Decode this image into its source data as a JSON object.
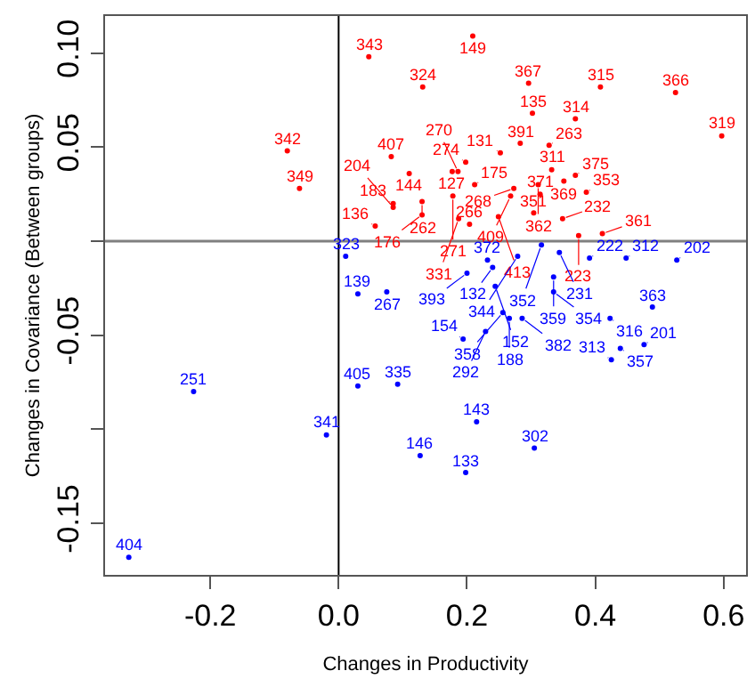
{
  "chart_data": {
    "type": "scatter",
    "xlabel": "Changes in Productivity",
    "ylabel": "Changes in Covariance (Between groups)",
    "marker": "circle",
    "xlim": [
      -0.364,
      0.635
    ],
    "ylim": [
      -0.1774,
      0.1197
    ],
    "xticks": [
      -0.2,
      {
        "value": 0,
        "label": "0.0"
      },
      0.2,
      0.4,
      0.6
    ],
    "yticks": [
      -0.15,
      {
        "value": -0.1,
        "label": null
      },
      -0.05,
      {
        "value": 0,
        "label": null
      },
      0.05,
      {
        "value": 0.1,
        "label": "0.10"
      }
    ],
    "ref_lines": [
      {
        "axis": "x",
        "value": 0,
        "color": "#000000"
      },
      {
        "axis": "y",
        "value": 0,
        "color": "#808080"
      }
    ],
    "series": [
      {
        "color": "#ff0000",
        "x": [
          0.209,
          0.047,
          0.131,
          0.296,
          0.408,
          0.525,
          0.302,
          0.369,
          0.597,
          -0.08,
          0.283,
          0.328,
          0.252,
          0.082,
          0.198,
          0.177,
          0.186,
          0.11,
          0.332,
          0.369,
          0.351,
          0.212,
          -0.061,
          0.273,
          0.311,
          0.268,
          0.314,
          0.386,
          0.13,
          0.178,
          0.085,
          0.085,
          0.13,
          0.187,
          0.204,
          0.249,
          0.304,
          0.349,
          0.057,
          0.374,
          0.411
        ],
        "values": [
          0.109,
          0.098,
          0.082,
          0.084,
          0.082,
          0.079,
          0.068,
          0.065,
          0.056,
          0.048,
          0.052,
          0.051,
          0.047,
          0.045,
          0.042,
          0.037,
          0.037,
          0.036,
          0.038,
          0.035,
          0.032,
          0.03,
          0.028,
          0.028,
          0.03,
          0.024,
          0.025,
          0.026,
          0.021,
          0.024,
          0.02,
          0.018,
          0.014,
          0.012,
          0.009,
          0.013,
          0.015,
          0.012,
          0.008,
          0.003,
          0.004
        ]
      },
      {
        "color": "#0000ff",
        "x": [
          0.316,
          0.344,
          0.279,
          0.391,
          0.448,
          0.527,
          0.011,
          0.232,
          0.24,
          0.2,
          0.335,
          0.244,
          0.335,
          0.03,
          0.075,
          0.489,
          0.423,
          0.256,
          0.266,
          0.286,
          0.229,
          0.194,
          0.439,
          0.476,
          0.425,
          0.03,
          0.092,
          -0.226,
          0.215,
          -0.019,
          0.305,
          0.127,
          0.198,
          -0.327
        ],
        "values": [
          -0.002,
          -0.006,
          -0.008,
          -0.009,
          -0.009,
          -0.01,
          -0.008,
          -0.01,
          -0.014,
          -0.017,
          -0.019,
          -0.024,
          -0.027,
          -0.028,
          -0.027,
          -0.035,
          -0.041,
          -0.038,
          -0.041,
          -0.041,
          -0.048,
          -0.052,
          -0.057,
          -0.055,
          -0.063,
          -0.077,
          -0.076,
          -0.08,
          -0.096,
          -0.103,
          -0.11,
          -0.114,
          -0.123,
          -0.168
        ]
      }
    ],
    "annotations": [
      {
        "text": "149",
        "x": 0.209,
        "y": 0.109
      },
      {
        "text": "343",
        "x": 0.047,
        "y": 0.098
      },
      {
        "text": "324",
        "x": 0.131,
        "y": 0.082
      },
      {
        "text": "367",
        "x": 0.296,
        "y": 0.084
      },
      {
        "text": "315",
        "x": 0.408,
        "y": 0.082
      },
      {
        "text": "366",
        "x": 0.525,
        "y": 0.079
      },
      {
        "text": "135",
        "x": 0.302,
        "y": 0.068
      },
      {
        "text": "314",
        "x": 0.369,
        "y": 0.065
      },
      {
        "text": "319",
        "x": 0.597,
        "y": 0.056
      },
      {
        "text": "342",
        "x": -0.08,
        "y": 0.048
      },
      {
        "text": "391",
        "x": 0.283,
        "y": 0.052
      },
      {
        "text": "263",
        "x": 0.328,
        "y": 0.051
      },
      {
        "text": "131",
        "x": 0.252,
        "y": 0.047
      },
      {
        "text": "407",
        "x": 0.082,
        "y": 0.045
      },
      {
        "text": "274",
        "x": 0.198,
        "y": 0.042
      },
      {
        "text": "127",
        "x": 0.177,
        "y": 0.037
      },
      {
        "text": "270",
        "x": 0.186,
        "y": 0.037
      },
      {
        "text": "144",
        "x": 0.11,
        "y": 0.036
      },
      {
        "text": "311",
        "x": 0.332,
        "y": 0.038
      },
      {
        "text": "375",
        "x": 0.369,
        "y": 0.035
      },
      {
        "text": "369",
        "x": 0.351,
        "y": 0.032
      },
      {
        "text": "175",
        "x": 0.212,
        "y": 0.03
      },
      {
        "text": "349",
        "x": -0.061,
        "y": 0.028
      },
      {
        "text": "268",
        "x": 0.273,
        "y": 0.028
      },
      {
        "text": "362",
        "x": 0.311,
        "y": 0.03
      },
      {
        "text": "409",
        "x": 0.268,
        "y": 0.024
      },
      {
        "text": "371",
        "x": 0.314,
        "y": 0.025
      },
      {
        "text": "353",
        "x": 0.386,
        "y": 0.026
      },
      {
        "text": "262",
        "x": 0.13,
        "y": 0.021
      },
      {
        "text": "271",
        "x": 0.178,
        "y": 0.024
      },
      {
        "text": "183",
        "x": 0.085,
        "y": 0.02
      },
      {
        "text": "204",
        "x": 0.085,
        "y": 0.018
      },
      {
        "text": "176",
        "x": 0.13,
        "y": 0.014
      },
      {
        "text": "331",
        "x": 0.187,
        "y": 0.012
      },
      {
        "text": "266",
        "x": 0.204,
        "y": 0.009
      },
      {
        "text": "413",
        "x": 0.249,
        "y": 0.013
      },
      {
        "text": "351",
        "x": 0.304,
        "y": 0.015
      },
      {
        "text": "232",
        "x": 0.349,
        "y": 0.012
      },
      {
        "text": "136",
        "x": 0.057,
        "y": 0.008
      },
      {
        "text": "223",
        "x": 0.374,
        "y": 0.003
      },
      {
        "text": "361",
        "x": 0.411,
        "y": 0.004
      },
      {
        "text": "352",
        "x": 0.316,
        "y": -0.002
      },
      {
        "text": "231",
        "x": 0.344,
        "y": -0.006
      },
      {
        "text": "344",
        "x": 0.279,
        "y": -0.008
      },
      {
        "text": "222",
        "x": 0.391,
        "y": -0.009
      },
      {
        "text": "312",
        "x": 0.448,
        "y": -0.009
      },
      {
        "text": "202",
        "x": 0.527,
        "y": -0.01
      },
      {
        "text": "323",
        "x": 0.011,
        "y": -0.008
      },
      {
        "text": "372",
        "x": 0.232,
        "y": -0.01
      },
      {
        "text": "132",
        "x": 0.24,
        "y": -0.014
      },
      {
        "text": "393",
        "x": 0.2,
        "y": -0.017
      },
      {
        "text": "359",
        "x": 0.335,
        "y": -0.019
      },
      {
        "text": "152",
        "x": 0.244,
        "y": -0.024
      },
      {
        "text": "354",
        "x": 0.335,
        "y": -0.027
      },
      {
        "text": "139",
        "x": 0.03,
        "y": -0.028
      },
      {
        "text": "267",
        "x": 0.075,
        "y": -0.027
      },
      {
        "text": "363",
        "x": 0.489,
        "y": -0.035
      },
      {
        "text": "316",
        "x": 0.423,
        "y": -0.041
      },
      {
        "text": "358",
        "x": 0.256,
        "y": -0.038
      },
      {
        "text": "188",
        "x": 0.266,
        "y": -0.041
      },
      {
        "text": "382",
        "x": 0.286,
        "y": -0.041
      },
      {
        "text": "292",
        "x": 0.229,
        "y": -0.048
      },
      {
        "text": "154",
        "x": 0.194,
        "y": -0.052
      },
      {
        "text": "357",
        "x": 0.439,
        "y": -0.057
      },
      {
        "text": "201",
        "x": 0.476,
        "y": -0.055
      },
      {
        "text": "313",
        "x": 0.425,
        "y": -0.063
      },
      {
        "text": "405",
        "x": 0.03,
        "y": -0.077
      },
      {
        "text": "335",
        "x": 0.092,
        "y": -0.076
      },
      {
        "text": "251",
        "x": -0.226,
        "y": -0.08
      },
      {
        "text": "143",
        "x": 0.215,
        "y": -0.096
      },
      {
        "text": "341",
        "x": -0.019,
        "y": -0.103
      },
      {
        "text": "302",
        "x": 0.305,
        "y": -0.11
      },
      {
        "text": "146",
        "x": 0.127,
        "y": -0.114
      },
      {
        "text": "133",
        "x": 0.198,
        "y": -0.123
      },
      {
        "text": "404",
        "x": -0.327,
        "y": -0.168
      }
    ]
  }
}
